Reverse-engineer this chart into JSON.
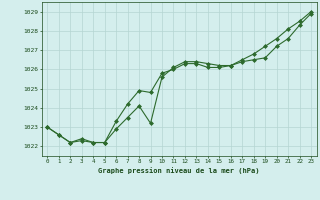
{
  "line1_x": [
    0,
    1,
    2,
    3,
    4,
    5,
    6,
    7,
    8,
    9,
    10,
    11,
    12,
    13,
    14,
    15,
    16,
    17,
    18,
    19,
    20,
    21,
    22,
    23
  ],
  "line1_y": [
    1023.0,
    1022.6,
    1022.2,
    1022.3,
    1022.2,
    1022.2,
    1022.9,
    1023.5,
    1024.1,
    1023.2,
    1025.6,
    1026.1,
    1026.4,
    1026.4,
    1026.3,
    1026.2,
    1026.2,
    1026.4,
    1026.5,
    1026.6,
    1027.2,
    1027.6,
    1028.3,
    1028.9
  ],
  "line2_x": [
    0,
    1,
    2,
    3,
    4,
    5,
    6,
    7,
    8,
    9,
    10,
    11,
    12,
    13,
    14,
    15,
    16,
    17,
    18,
    19,
    20,
    21,
    22,
    23
  ],
  "line2_y": [
    1023.0,
    1022.6,
    1022.2,
    1022.4,
    1022.2,
    1022.2,
    1023.3,
    1024.2,
    1024.9,
    1024.8,
    1025.8,
    1026.0,
    1026.3,
    1026.3,
    1026.1,
    1026.1,
    1026.2,
    1026.5,
    1026.8,
    1027.2,
    1027.6,
    1028.1,
    1028.5,
    1029.0
  ],
  "line_color": "#2d6a2d",
  "bg_color": "#d4eeed",
  "grid_color": "#b5d5d2",
  "xlabel": "Graphe pression niveau de la mer (hPa)",
  "xlabel_color": "#1a4a1a",
  "tick_color": "#1a4a1a",
  "ylim": [
    1021.5,
    1029.5
  ],
  "xlim": [
    -0.5,
    23.5
  ],
  "yticks": [
    1022,
    1023,
    1024,
    1025,
    1026,
    1027,
    1028,
    1029
  ],
  "xticks": [
    0,
    1,
    2,
    3,
    4,
    5,
    6,
    7,
    8,
    9,
    10,
    11,
    12,
    13,
    14,
    15,
    16,
    17,
    18,
    19,
    20,
    21,
    22,
    23
  ]
}
